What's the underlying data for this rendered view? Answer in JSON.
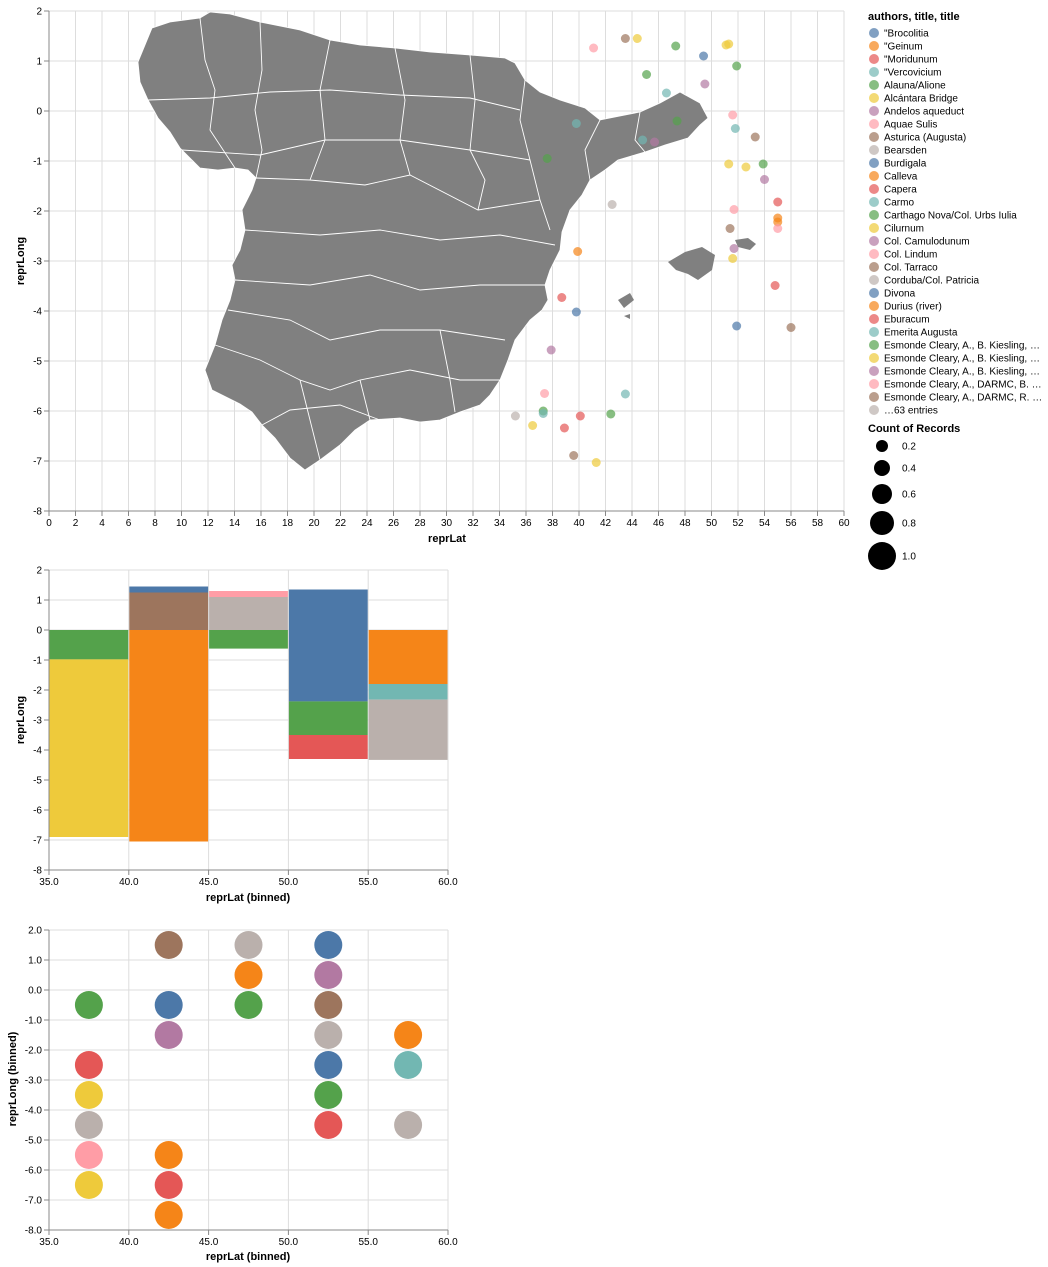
{
  "colors": {
    "palette": [
      "#4c78a8",
      "#f58518",
      "#e45756",
      "#72b7b2",
      "#54a24b",
      "#eeca3b",
      "#b279a2",
      "#ff9da6",
      "#9d755d",
      "#bab0ac"
    ],
    "map_fill": "#808080",
    "grid": "#dddddd",
    "axis": "#888888"
  },
  "chart_data": [
    {
      "type": "scatter",
      "title": "",
      "xlabel": "reprLat",
      "ylabel": "reprLong",
      "xlim": [
        0,
        60
      ],
      "ylim": [
        -8,
        2
      ],
      "xticks": [
        "0",
        "2",
        "4",
        "6",
        "8",
        "10",
        "12",
        "14",
        "16",
        "18",
        "20",
        "22",
        "24",
        "26",
        "28",
        "30",
        "32",
        "34",
        "36",
        "38",
        "40",
        "42",
        "44",
        "46",
        "48",
        "50",
        "52",
        "54",
        "56",
        "58",
        "60"
      ],
      "yticks": [
        "-8",
        "-7",
        "-6",
        "-5",
        "-4",
        "-3",
        "-2",
        "-1",
        "0",
        "1",
        "2"
      ],
      "grid": true,
      "background_map": "Spain provinces (grey)",
      "legend": {
        "title": "authors, title, title",
        "placement": "right",
        "entries": [
          "\"Brocolitia",
          "\"Geinum",
          "\"Moridunum",
          "\"Vercovicium",
          "Alauna/Alione",
          "Alcántara Bridge",
          "Andelos aqueduct",
          "Aquae Sulis",
          "Asturica (Augusta)",
          "Bearsden",
          "Burdigala",
          "Calleva",
          "Capera",
          "Carmo",
          "Carthago Nova/Col. Urbs Iulia",
          "Cilurnum",
          "Col. Camulodunum",
          "Col. Lindum",
          "Col. Tarraco",
          "Corduba/Col. Patricia",
          "Divona",
          "Durius (river)",
          "Eburacum",
          "Emerita Augusta",
          "Esmonde Cleary, A., B. Kiesling, …",
          "Esmonde Cleary, A., B. Kiesling, …",
          "Esmonde Cleary, A., B. Kiesling, …",
          "Esmonde Cleary, A., DARMC, B. …",
          "Esmonde Cleary, A., DARMC, R. …",
          "…63 entries"
        ]
      },
      "size_legend": {
        "title": "Count of Records",
        "values": [
          "0.2",
          "0.4",
          "0.6",
          "0.8",
          "1.0"
        ]
      },
      "points": [
        {
          "x": 37.6,
          "y": -0.95,
          "c": 4
        },
        {
          "x": 39.8,
          "y": -0.25,
          "c": 3
        },
        {
          "x": 44.8,
          "y": -0.58,
          "c": 3
        },
        {
          "x": 45.7,
          "y": -0.62,
          "c": 6
        },
        {
          "x": 47.4,
          "y": -0.2,
          "c": 4
        },
        {
          "x": 41.1,
          "y": 1.26,
          "c": 7
        },
        {
          "x": 43.5,
          "y": 1.45,
          "c": 8
        },
        {
          "x": 44.4,
          "y": 1.45,
          "c": 5
        },
        {
          "x": 45.1,
          "y": 0.73,
          "c": 4
        },
        {
          "x": 46.6,
          "y": 0.36,
          "c": 3
        },
        {
          "x": 47.3,
          "y": 1.3,
          "c": 4
        },
        {
          "x": 49.4,
          "y": 1.1,
          "c": 0
        },
        {
          "x": 49.5,
          "y": 0.54,
          "c": 6
        },
        {
          "x": 51.1,
          "y": 1.32,
          "c": 5
        },
        {
          "x": 51.3,
          "y": 1.34,
          "c": 5
        },
        {
          "x": 51.9,
          "y": 0.9,
          "c": 4
        },
        {
          "x": 51.6,
          "y": -0.08,
          "c": 7
        },
        {
          "x": 51.8,
          "y": -0.35,
          "c": 3
        },
        {
          "x": 53.3,
          "y": -0.52,
          "c": 8
        },
        {
          "x": 51.3,
          "y": -1.06,
          "c": 5
        },
        {
          "x": 52.6,
          "y": -1.12,
          "c": 5
        },
        {
          "x": 53.9,
          "y": -1.06,
          "c": 4
        },
        {
          "x": 54.0,
          "y": -1.37,
          "c": 6
        },
        {
          "x": 55.0,
          "y": -1.82,
          "c": 2
        },
        {
          "x": 51.7,
          "y": -1.97,
          "c": 7
        },
        {
          "x": 55.0,
          "y": -2.14,
          "c": 1
        },
        {
          "x": 55.0,
          "y": -2.22,
          "c": 1
        },
        {
          "x": 55.0,
          "y": -2.35,
          "c": 7
        },
        {
          "x": 51.4,
          "y": -2.35,
          "c": 8
        },
        {
          "x": 51.7,
          "y": -2.75,
          "c": 6
        },
        {
          "x": 51.6,
          "y": -2.95,
          "c": 5
        },
        {
          "x": 54.8,
          "y": -3.49,
          "c": 2
        },
        {
          "x": 51.9,
          "y": -4.3,
          "c": 0
        },
        {
          "x": 56.0,
          "y": -4.33,
          "c": 8
        },
        {
          "x": 42.5,
          "y": -1.87,
          "c": 9
        },
        {
          "x": 39.9,
          "y": -2.81,
          "c": 1
        },
        {
          "x": 38.7,
          "y": -3.73,
          "c": 2
        },
        {
          "x": 39.8,
          "y": -4.02,
          "c": 0
        },
        {
          "x": 37.9,
          "y": -4.78,
          "c": 6
        },
        {
          "x": 37.4,
          "y": -5.65,
          "c": 7
        },
        {
          "x": 43.5,
          "y": -5.66,
          "c": 3
        },
        {
          "x": 35.2,
          "y": -6.1,
          "c": 9
        },
        {
          "x": 37.3,
          "y": -6.0,
          "c": 4
        },
        {
          "x": 37.3,
          "y": -6.05,
          "c": 3
        },
        {
          "x": 40.1,
          "y": -6.1,
          "c": 2
        },
        {
          "x": 42.4,
          "y": -6.06,
          "c": 4
        },
        {
          "x": 36.5,
          "y": -6.29,
          "c": 5
        },
        {
          "x": 38.9,
          "y": -6.34,
          "c": 2
        },
        {
          "x": 39.6,
          "y": -6.89,
          "c": 8
        },
        {
          "x": 41.3,
          "y": -7.03,
          "c": 5
        }
      ]
    },
    {
      "type": "bar",
      "stacked": true,
      "title": "",
      "xlabel": "reprLat (binned)",
      "ylabel": "reprLong",
      "xlim": [
        35,
        60
      ],
      "ylim": [
        -8,
        2
      ],
      "xticks": [
        "35.0",
        "40.0",
        "45.0",
        "50.0",
        "55.0",
        "60.0"
      ],
      "yticks": [
        "-8",
        "-7",
        "-6",
        "-5",
        "-4",
        "-3",
        "-2",
        "-1",
        "0",
        "1",
        "2"
      ],
      "grid": true,
      "bins": [
        {
          "x0": 35,
          "x1": 40,
          "segments": [
            {
              "y0": 0,
              "y1": -0.98,
              "c": 4
            },
            {
              "y0": -0.98,
              "y1": -6.9,
              "c": 5
            }
          ]
        },
        {
          "x0": 40,
          "x1": 45,
          "segments": [
            {
              "y0": 0,
              "y1": 1.25,
              "c": 8
            },
            {
              "y0": 1.25,
              "y1": 1.45,
              "c": 0
            },
            {
              "y0": 0,
              "y1": -7.05,
              "c": 1
            }
          ]
        },
        {
          "x0": 45,
          "x1": 50,
          "segments": [
            {
              "y0": 0,
              "y1": 1.1,
              "c": 9
            },
            {
              "y0": 1.1,
              "y1": 1.3,
              "c": 7
            },
            {
              "y0": 0,
              "y1": -0.62,
              "c": 4
            }
          ]
        },
        {
          "x0": 50,
          "x1": 55,
          "segments": [
            {
              "y0": 1.35,
              "y1": -2.38,
              "c": 0
            },
            {
              "y0": -2.38,
              "y1": -3.5,
              "c": 4
            },
            {
              "y0": -3.5,
              "y1": -4.3,
              "c": 2
            }
          ]
        },
        {
          "x0": 55,
          "x1": 60,
          "segments": [
            {
              "y0": 0,
              "y1": -1.8,
              "c": 1
            },
            {
              "y0": -1.8,
              "y1": -2.32,
              "c": 3
            },
            {
              "y0": -2.32,
              "y1": -4.33,
              "c": 9
            }
          ]
        }
      ]
    },
    {
      "type": "scatter",
      "title": "",
      "xlabel": "reprLat (binned)",
      "ylabel": "reprLong (binned)",
      "xlim": [
        35,
        60
      ],
      "ylim": [
        -8,
        2
      ],
      "xticks": [
        "35.0",
        "40.0",
        "45.0",
        "50.0",
        "55.0",
        "60.0"
      ],
      "yticks": [
        "-8.0",
        "-7.0",
        "-6.0",
        "-5.0",
        "-4.0",
        "-3.0",
        "-2.0",
        "-1.0",
        "0.0",
        "1.0",
        "2.0"
      ],
      "grid": true,
      "points": [
        {
          "x": 37.5,
          "y": -0.5,
          "c": 4
        },
        {
          "x": 37.5,
          "y": -2.5,
          "c": 2
        },
        {
          "x": 37.5,
          "y": -3.5,
          "c": 5
        },
        {
          "x": 37.5,
          "y": -4.5,
          "c": 9
        },
        {
          "x": 37.5,
          "y": -5.5,
          "c": 7
        },
        {
          "x": 37.5,
          "y": -6.5,
          "c": 5
        },
        {
          "x": 42.5,
          "y": 1.5,
          "c": 8
        },
        {
          "x": 42.5,
          "y": -0.5,
          "c": 0
        },
        {
          "x": 42.5,
          "y": -1.5,
          "c": 6
        },
        {
          "x": 42.5,
          "y": -5.5,
          "c": 1
        },
        {
          "x": 42.5,
          "y": -6.5,
          "c": 2
        },
        {
          "x": 42.5,
          "y": -7.5,
          "c": 1
        },
        {
          "x": 47.5,
          "y": 1.5,
          "c": 9
        },
        {
          "x": 47.5,
          "y": 0.5,
          "c": 1
        },
        {
          "x": 47.5,
          "y": -0.5,
          "c": 4
        },
        {
          "x": 52.5,
          "y": 1.5,
          "c": 0
        },
        {
          "x": 52.5,
          "y": 0.5,
          "c": 6
        },
        {
          "x": 52.5,
          "y": -0.5,
          "c": 8
        },
        {
          "x": 52.5,
          "y": -1.5,
          "c": 9
        },
        {
          "x": 52.5,
          "y": -2.5,
          "c": 0
        },
        {
          "x": 52.5,
          "y": -3.5,
          "c": 4
        },
        {
          "x": 52.5,
          "y": -4.5,
          "c": 2
        },
        {
          "x": 57.5,
          "y": -1.5,
          "c": 1
        },
        {
          "x": 57.5,
          "y": -2.5,
          "c": 3
        },
        {
          "x": 57.5,
          "y": -4.5,
          "c": 9
        }
      ]
    }
  ]
}
